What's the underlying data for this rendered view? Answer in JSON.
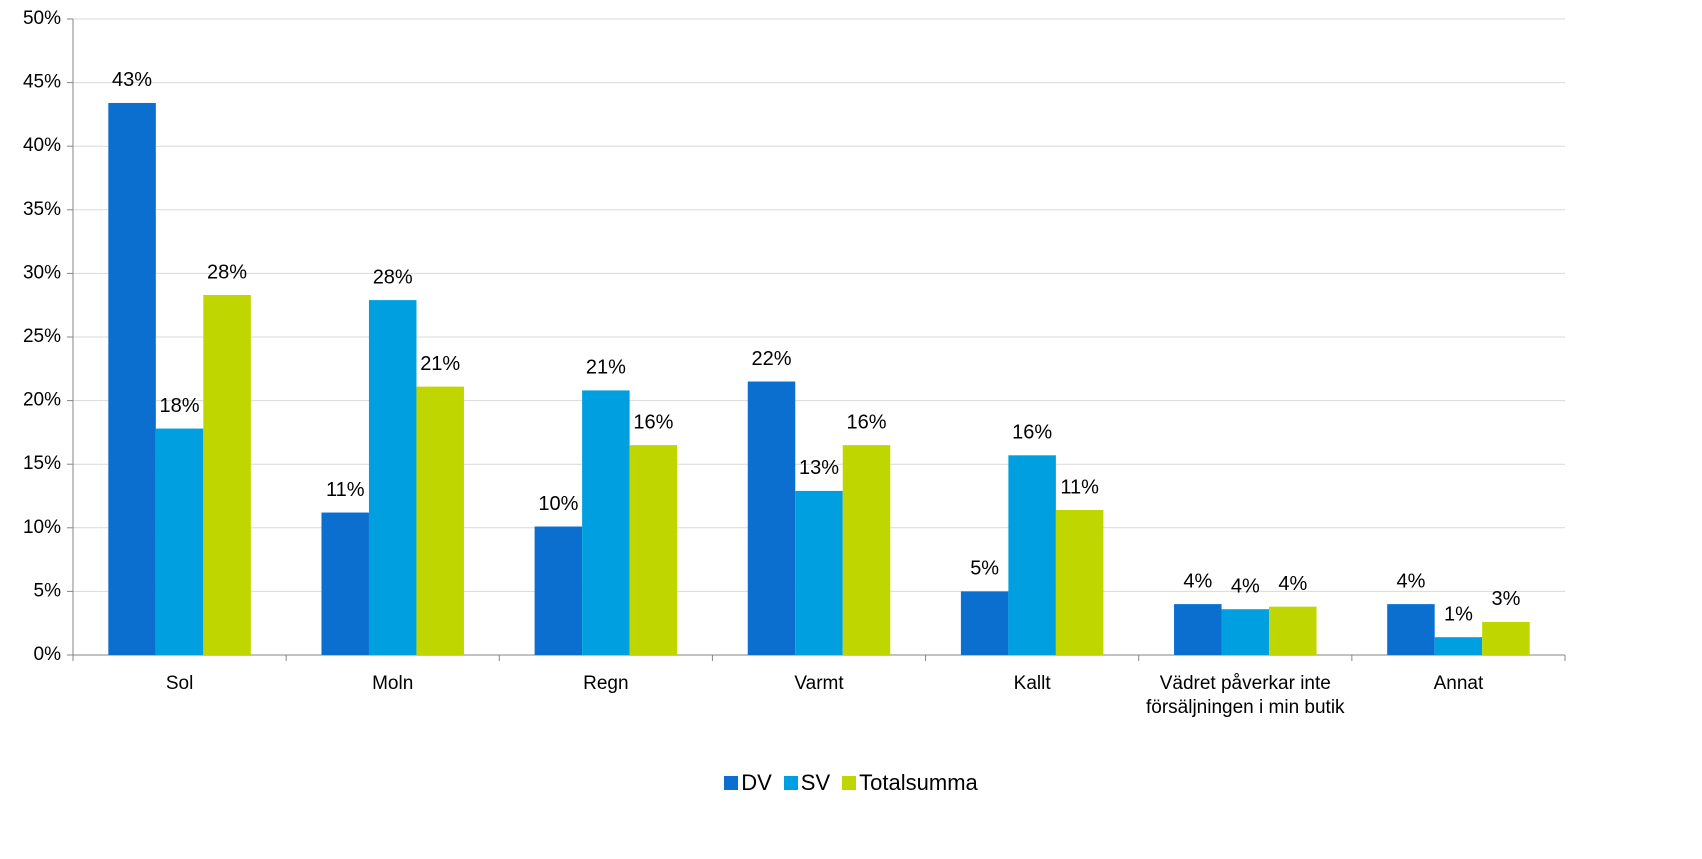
{
  "chart_data": {
    "type": "bar",
    "categories": [
      "Sol",
      "Moln",
      "Regn",
      "Varmt",
      "Kallt",
      "Vädret påverkar inte försäljningen i min butik",
      "Annat"
    ],
    "series": [
      {
        "name": "DV",
        "color": "#0a6fcf",
        "values": [
          43.4,
          11.2,
          10.1,
          21.5,
          5.0,
          4.0,
          4.0
        ],
        "value_labels": [
          "43%",
          "11%",
          "10%",
          "22%",
          "5%",
          "4%",
          "4%"
        ]
      },
      {
        "name": "SV",
        "color": "#00a0e0",
        "values": [
          17.8,
          27.9,
          20.8,
          12.9,
          15.7,
          3.6,
          1.4
        ],
        "value_labels": [
          "18%",
          "28%",
          "21%",
          "13%",
          "16%",
          "4%",
          "1%"
        ]
      },
      {
        "name": "Totalsumma",
        "color": "#bfd600",
        "values": [
          28.3,
          21.1,
          16.5,
          16.5,
          11.4,
          3.8,
          2.6
        ],
        "value_labels": [
          "28%",
          "21%",
          "16%",
          "16%",
          "11%",
          "4%",
          "3%"
        ]
      }
    ],
    "ylim": [
      0,
      50
    ],
    "yticks": [
      {
        "value": 0,
        "label": "0%"
      },
      {
        "value": 5,
        "label": "5%"
      },
      {
        "value": 10,
        "label": "10%"
      },
      {
        "value": 15,
        "label": "15%"
      },
      {
        "value": 20,
        "label": "20%"
      },
      {
        "value": 25,
        "label": "25%"
      },
      {
        "value": 30,
        "label": "30%"
      },
      {
        "value": 35,
        "label": "35%"
      },
      {
        "value": 40,
        "label": "40%"
      },
      {
        "value": 45,
        "label": "45%"
      },
      {
        "value": 50,
        "label": "50%"
      }
    ],
    "grid": true,
    "legend": "bottom"
  }
}
